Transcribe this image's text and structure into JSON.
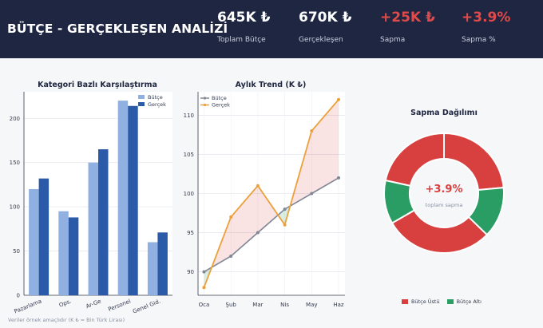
{
  "header": {
    "title": "BÜTÇE - GERÇEKLEŞEN ANALİZİ",
    "kpis": [
      {
        "value": "645K ₺",
        "label": "Toplam Bütçe",
        "color": "#ffffff"
      },
      {
        "value": "670K ₺",
        "label": "Gerçekleşen",
        "color": "#ffffff"
      },
      {
        "value": "+25K ₺",
        "label": "Sapma",
        "color": "#e04a4a"
      },
      {
        "value": "+3.9%",
        "label": "Sapma %",
        "color": "#e04a4a"
      }
    ]
  },
  "colors": {
    "budget_bar": "#8fb0e0",
    "actual_bar": "#2b5aa8",
    "budget_line": "#808694",
    "actual_line": "#eba03a",
    "over": "#d84040",
    "under": "#2a9d64"
  },
  "footnote": "Veriler örnek amaçlıdır (K ₺ = Bin Türk Lirası)",
  "chart_data": [
    {
      "type": "bar",
      "title": "Kategori Bazlı Karşılaştırma",
      "categories": [
        "Pazarlama",
        "Ops.",
        "Ar-Ge",
        "Personel",
        "Genel Gid."
      ],
      "series": [
        {
          "name": "Bütçe",
          "values": [
            120,
            95,
            150,
            220,
            60
          ]
        },
        {
          "name": "Gerçek",
          "values": [
            132,
            88,
            165,
            214,
            71
          ]
        }
      ],
      "ylim": [
        0,
        230
      ],
      "yticks": [
        0,
        50,
        100,
        150,
        200
      ],
      "legend": "top-right",
      "grid": true
    },
    {
      "type": "line",
      "title": "Aylık Trend (K ₺)",
      "categories": [
        "Oca",
        "Şub",
        "Mar",
        "Nis",
        "May",
        "Haz"
      ],
      "series": [
        {
          "name": "Bütçe",
          "values": [
            90,
            92,
            95,
            98,
            100,
            102
          ]
        },
        {
          "name": "Gerçek",
          "values": [
            88,
            97,
            101,
            96,
            108,
            112
          ]
        }
      ],
      "ylim": [
        87,
        113
      ],
      "yticks": [
        90,
        95,
        100,
        105,
        110
      ],
      "legend": "top-left",
      "grid": true
    },
    {
      "type": "pie",
      "title": "Sapma Dağılımı",
      "center_value": "+3.9%",
      "center_label": "toplam sapma",
      "slices": [
        {
          "category": "Bütçe Üstü",
          "value": 12
        },
        {
          "category": "Bütçe Altı",
          "value": 7
        },
        {
          "category": "Bütçe Üstü",
          "value": 15
        },
        {
          "category": "Bütçe Altı",
          "value": 6
        },
        {
          "category": "Bütçe Üstü",
          "value": 11
        }
      ],
      "legend": [
        {
          "name": "Bütçe Üstü",
          "color": "#d84040"
        },
        {
          "name": "Bütçe Altı",
          "color": "#2a9d64"
        }
      ]
    }
  ]
}
